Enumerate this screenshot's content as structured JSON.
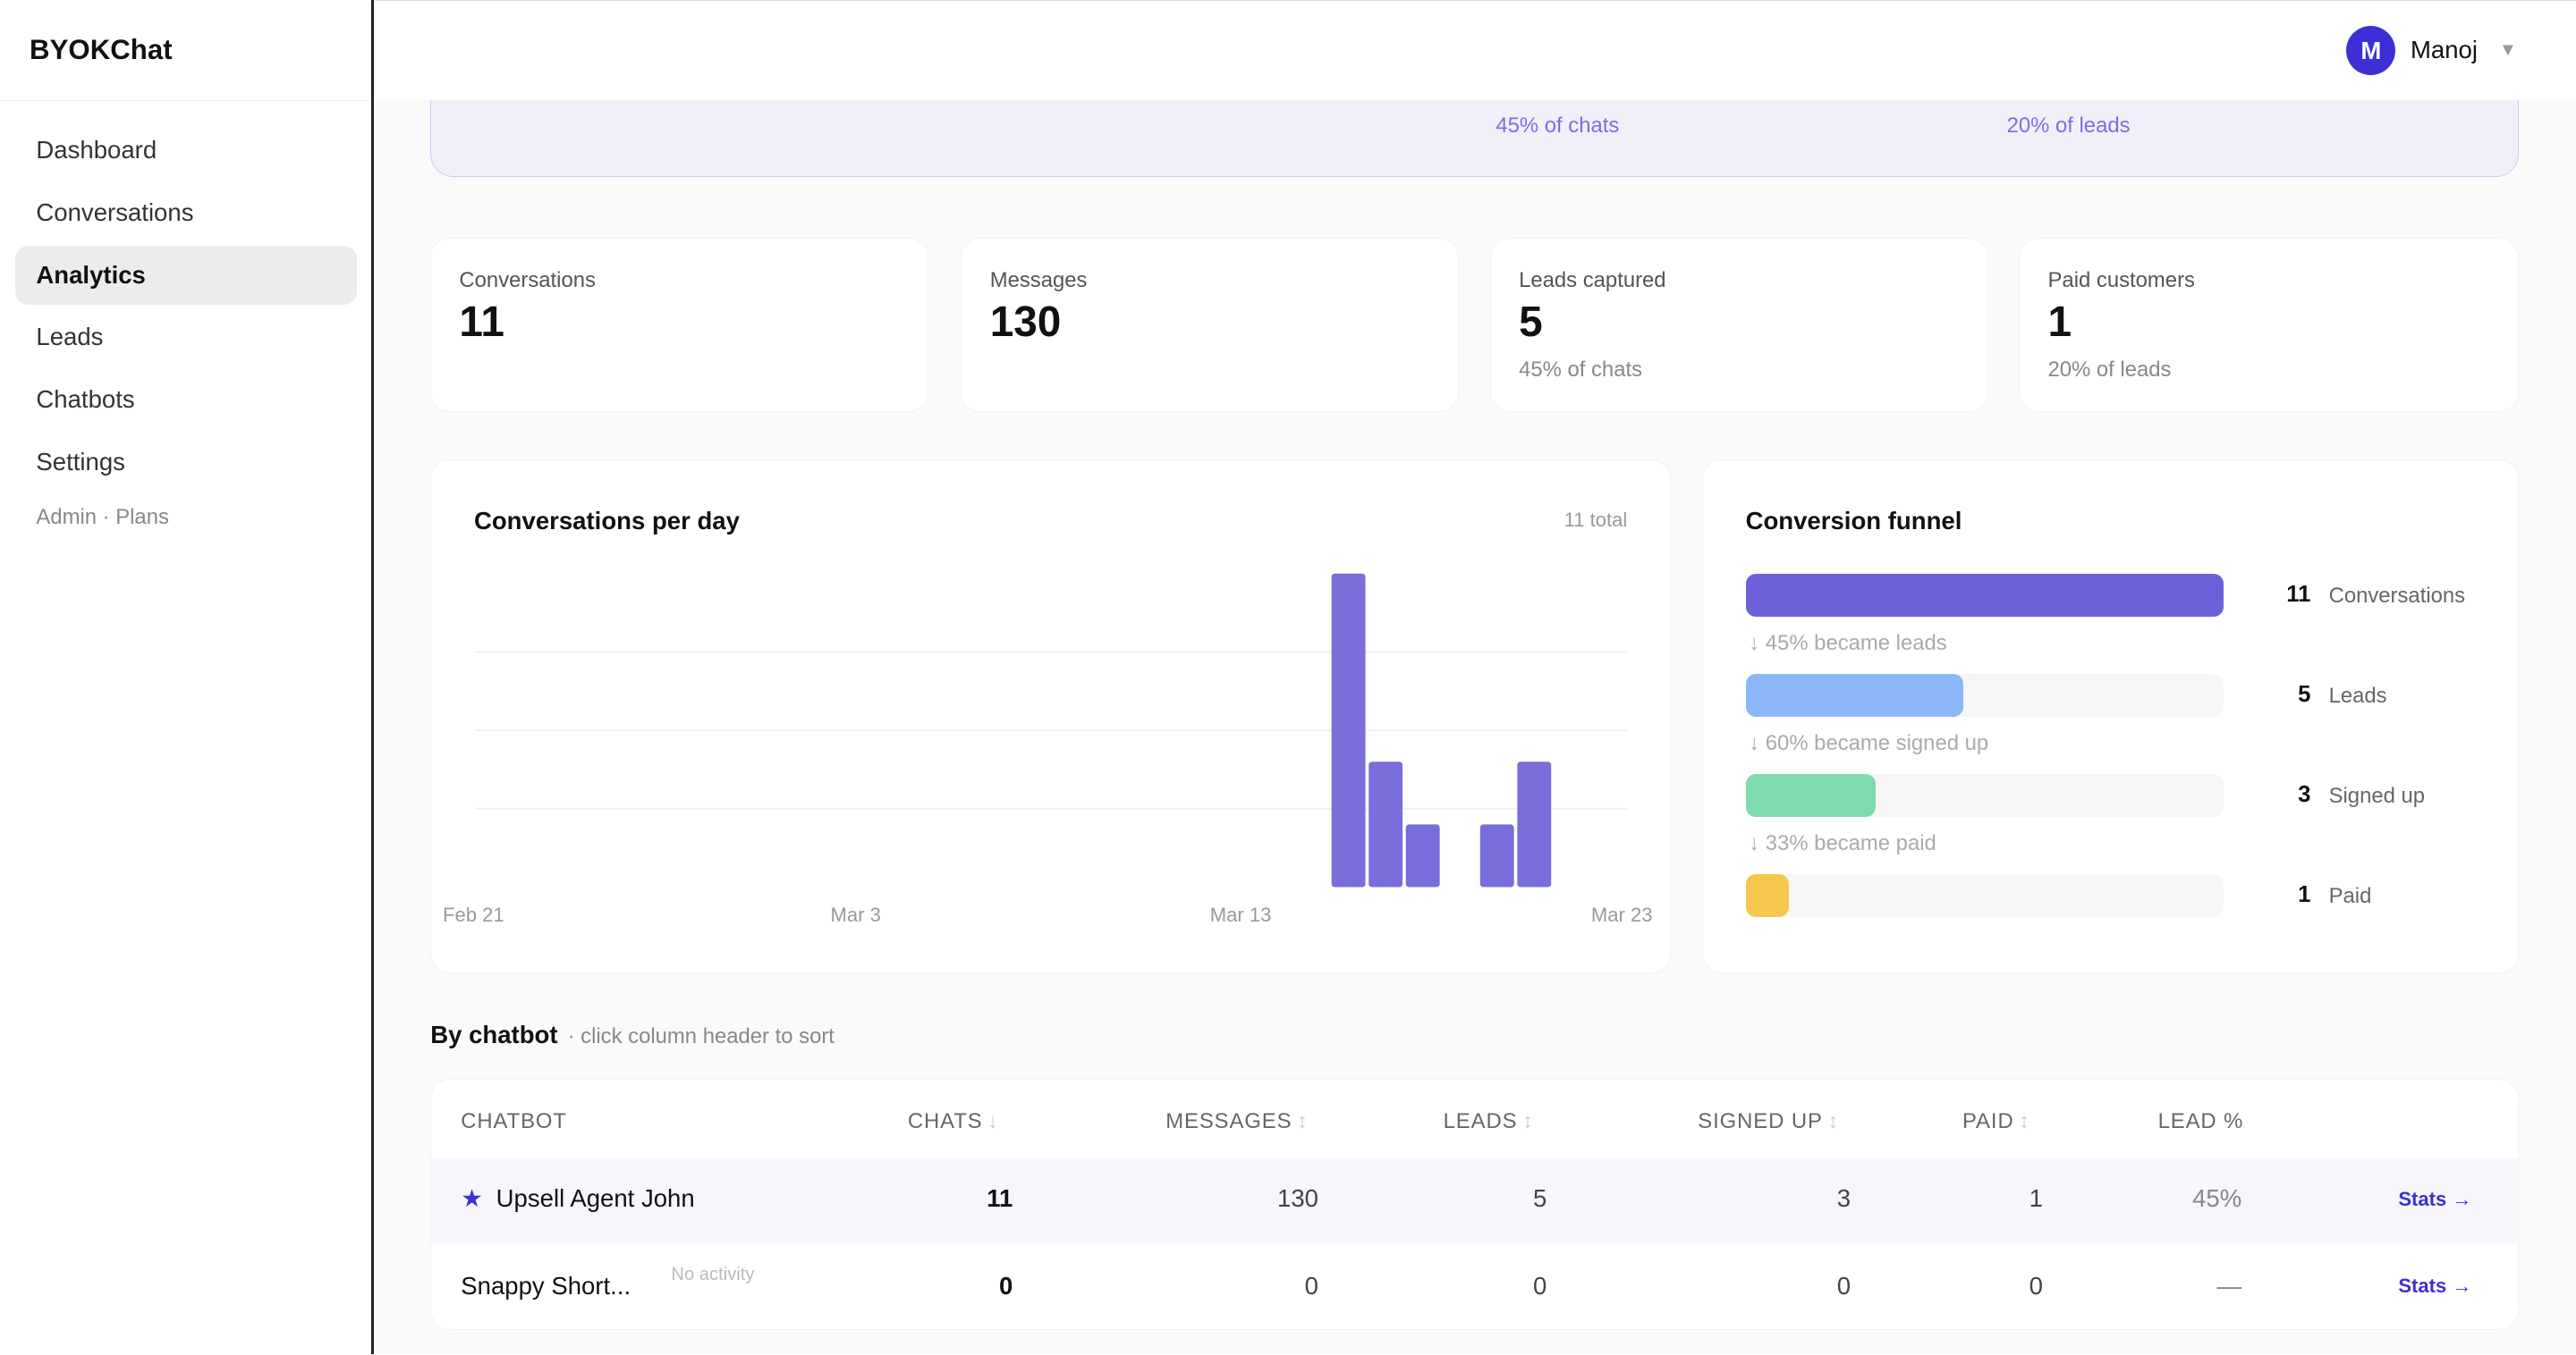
{
  "app": {
    "brand": "BYOKChat"
  },
  "sidebar": {
    "items": [
      {
        "label": "Dashboard"
      },
      {
        "label": "Conversations"
      },
      {
        "label": "Analytics",
        "active": true
      },
      {
        "label": "Leads"
      },
      {
        "label": "Chatbots"
      },
      {
        "label": "Settings"
      }
    ],
    "sub": "Admin · Plans"
  },
  "header": {
    "avatar_initial": "M",
    "user": "Manoj"
  },
  "banner": {
    "items": [
      "45% of chats",
      "20% of leads"
    ]
  },
  "stats": [
    {
      "label": "Conversations",
      "value": "11",
      "sub": ""
    },
    {
      "label": "Messages",
      "value": "130",
      "sub": ""
    },
    {
      "label": "Leads captured",
      "value": "5",
      "sub": "45% of chats"
    },
    {
      "label": "Paid customers",
      "value": "1",
      "sub": "20% of leads"
    }
  ],
  "chart_data": {
    "type": "bar",
    "title": "Conversations per day",
    "total_label": "11 total",
    "xtick_labels": [
      "Feb 21",
      "Mar 3",
      "Mar 13",
      "Mar 23"
    ],
    "categories": [
      "Feb 21",
      "Feb 22",
      "Feb 23",
      "Feb 24",
      "Feb 25",
      "Feb 26",
      "Feb 27",
      "Feb 28",
      "Mar 1",
      "Mar 2",
      "Mar 3",
      "Mar 4",
      "Mar 5",
      "Mar 6",
      "Mar 7",
      "Mar 8",
      "Mar 9",
      "Mar 10",
      "Mar 11",
      "Mar 12",
      "Mar 13",
      "Mar 14",
      "Mar 15",
      "Mar 16",
      "Mar 17",
      "Mar 18",
      "Mar 19",
      "Mar 20",
      "Mar 21",
      "Mar 22",
      "Mar 23"
    ],
    "values": [
      0,
      0,
      0,
      0,
      0,
      0,
      0,
      0,
      0,
      0,
      0,
      0,
      0,
      0,
      0,
      0,
      0,
      0,
      0,
      0,
      0,
      0,
      0,
      5,
      2,
      1,
      0,
      1,
      2,
      0,
      0
    ],
    "ylim": [
      0,
      5
    ],
    "grid": true,
    "color": "#7a6ddc"
  },
  "funnel": {
    "title": "Conversion funnel",
    "stages": [
      {
        "count": "11",
        "name": "Conversations",
        "value": 11,
        "color": "#6d61d9"
      },
      {
        "count": "5",
        "name": "Leads",
        "value": 5,
        "color": "#8cb8fb"
      },
      {
        "count": "3",
        "name": "Signed up",
        "value": 3,
        "color": "#7fdaae"
      },
      {
        "count": "1",
        "name": "Paid",
        "value": 1,
        "color": "#f4c84f"
      }
    ],
    "notes": [
      "↓  45% became leads",
      "↓  60% became signed up",
      "↓  33% became paid"
    ]
  },
  "by_chatbot": {
    "title": "By chatbot",
    "hint": "· click column header to sort",
    "columns": [
      {
        "label": "CHATBOT",
        "arrow": ""
      },
      {
        "label": "CHATS",
        "arrow": "↓"
      },
      {
        "label": "MESSAGES",
        "arrow": "↕"
      },
      {
        "label": "LEADS",
        "arrow": "↕"
      },
      {
        "label": "SIGNED UP",
        "arrow": "↕"
      },
      {
        "label": "PAID",
        "arrow": "↕"
      },
      {
        "label": "LEAD %",
        "arrow": ""
      }
    ],
    "rows": [
      {
        "name": "Upsell Agent John",
        "starred": true,
        "badge": "",
        "chats": "11",
        "messages": "130",
        "leads": "5",
        "signed_up": "3",
        "paid": "1",
        "lead_pct": "45%",
        "action": "Stats →"
      },
      {
        "name": "Snappy Short...",
        "starred": false,
        "badge": "No activity",
        "chats": "0",
        "messages": "0",
        "leads": "0",
        "signed_up": "0",
        "paid": "0",
        "lead_pct": "—",
        "action": "Stats →"
      }
    ]
  }
}
